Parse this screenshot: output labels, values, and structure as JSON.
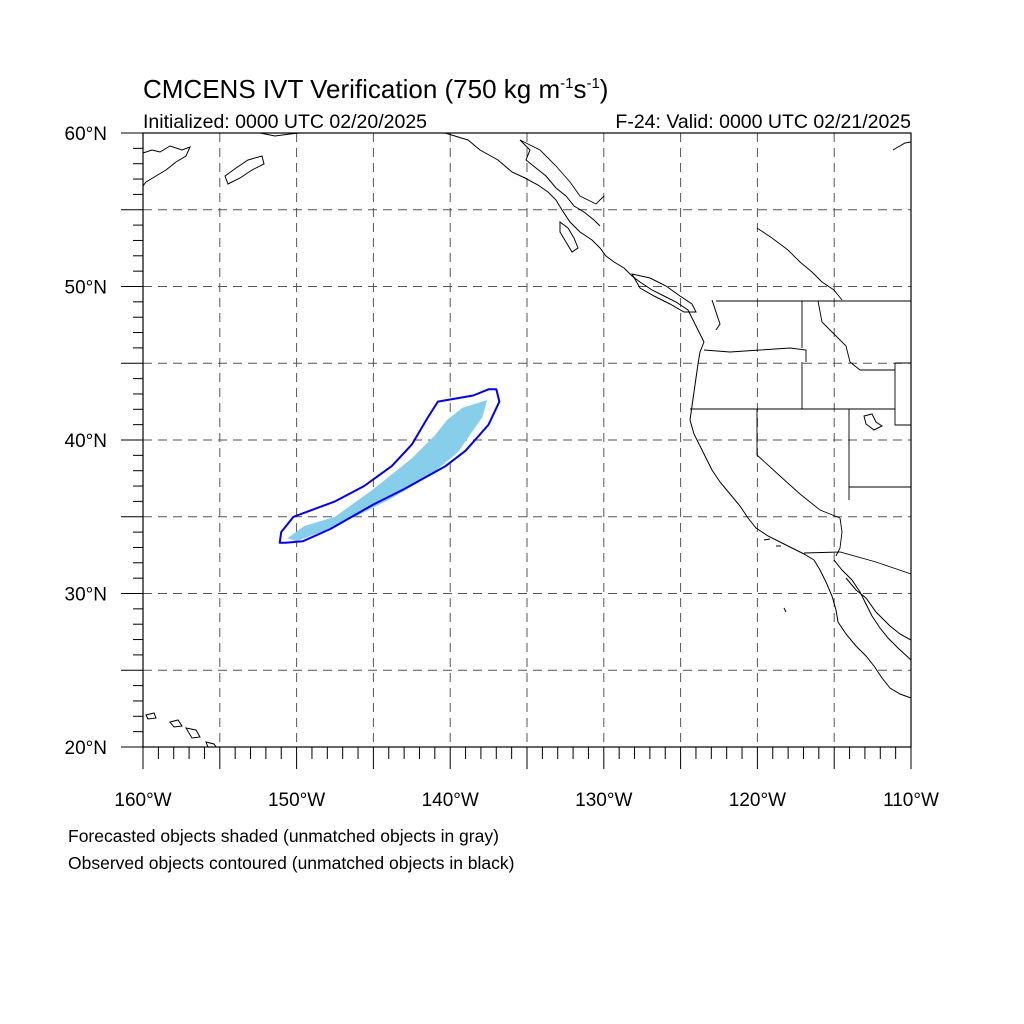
{
  "title": {
    "prefix": "CMCENS IVT Verification (750 kg m",
    "sup1": "-1",
    "middle": "s",
    "sup2": "-1",
    "suffix": ")"
  },
  "subtitle_left": "Initialized: 0000 UTC 02/20/2025",
  "subtitle_right": "F-24: Valid: 0000 UTC 02/21/2025",
  "map": {
    "lon_range": [
      -160,
      -110
    ],
    "lat_range": [
      20,
      60
    ],
    "lat_ticks": [
      {
        "value": 20,
        "label": "20°N"
      },
      {
        "value": 30,
        "label": "30°N"
      },
      {
        "value": 40,
        "label": "40°N"
      },
      {
        "value": 50,
        "label": "50°N"
      },
      {
        "value": 60,
        "label": "60°N"
      }
    ],
    "lon_ticks": [
      {
        "value": -160,
        "label": "160°W"
      },
      {
        "value": -150,
        "label": "150°W"
      },
      {
        "value": -140,
        "label": "140°W"
      },
      {
        "value": -130,
        "label": "130°W"
      },
      {
        "value": -120,
        "label": "120°W"
      },
      {
        "value": -110,
        "label": "110°W"
      }
    ],
    "grid_interval_deg": 5,
    "grid_style": "dashed"
  },
  "colors": {
    "forecast_fill": "#87ceeb",
    "forecast_unmatched": "#a9a9a9",
    "observed_contour": "#0000ee",
    "coast": "#000000"
  },
  "forecast_object": {
    "lonlat": [
      [
        -150.6,
        33.6
      ],
      [
        -149.5,
        34.4
      ],
      [
        -147.5,
        35.0
      ],
      [
        -145.0,
        36.8
      ],
      [
        -142.5,
        38.8
      ],
      [
        -141.0,
        40.3
      ],
      [
        -140.2,
        41.3
      ],
      [
        -139.2,
        42.1
      ],
      [
        -137.6,
        42.6
      ],
      [
        -137.9,
        41.5
      ],
      [
        -139.5,
        39.2
      ],
      [
        -141.3,
        37.7
      ],
      [
        -143.8,
        36.2
      ],
      [
        -146.0,
        35.1
      ],
      [
        -148.2,
        34.1
      ],
      [
        -150.0,
        33.4
      ]
    ]
  },
  "observed_object": {
    "lonlat": [
      [
        -151.1,
        33.3
      ],
      [
        -151.0,
        34.0
      ],
      [
        -150.2,
        35.0
      ],
      [
        -147.5,
        36.0
      ],
      [
        -145.6,
        37.0
      ],
      [
        -143.8,
        38.3
      ],
      [
        -142.5,
        39.7
      ],
      [
        -141.5,
        41.4
      ],
      [
        -140.8,
        42.5
      ],
      [
        -138.5,
        42.9
      ],
      [
        -137.5,
        43.3
      ],
      [
        -137.0,
        43.3
      ],
      [
        -136.8,
        42.5
      ],
      [
        -137.5,
        41.0
      ],
      [
        -139.0,
        39.3
      ],
      [
        -140.3,
        38.3
      ],
      [
        -143.0,
        36.8
      ],
      [
        -145.0,
        35.8
      ],
      [
        -147.8,
        34.2
      ],
      [
        -149.6,
        33.4
      ],
      [
        -150.7,
        33.3
      ]
    ]
  },
  "notes": {
    "line1": "Forecasted objects shaded (unmatched objects in gray)",
    "line2": "Observed objects contoured (unmatched objects in black)"
  }
}
